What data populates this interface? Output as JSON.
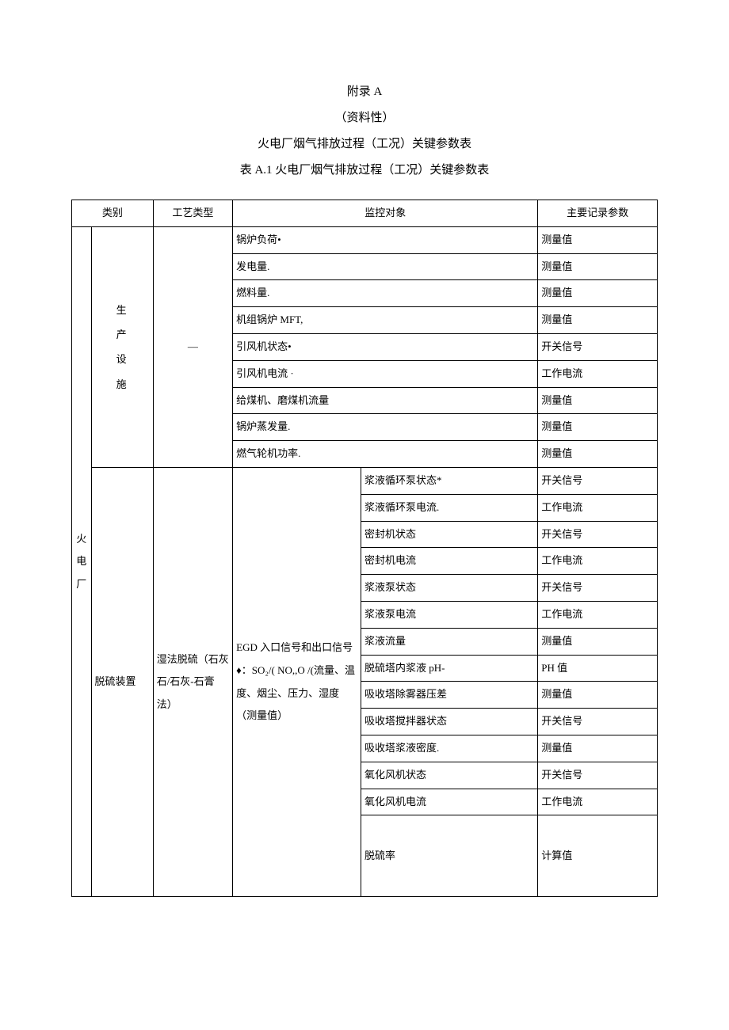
{
  "header": {
    "appendix": "附录 A",
    "nature": "（资料性）",
    "title": "火电厂烟气排放过程（工况）关键参数表",
    "table_caption": "表 A.1 火电厂烟气排放过程（工况）关键参数表"
  },
  "columns": {
    "category": "类别",
    "process_type": "工艺类型",
    "monitor_object": "监控对象",
    "main_params": "主要记录参数"
  },
  "facility_root": "火\n电\n厂",
  "section1": {
    "category": "生\n产\n设\n施",
    "process": "—",
    "rows": [
      {
        "obj": "锅炉负荷•",
        "param": "测量值"
      },
      {
        "obj": "发电量.",
        "param": "测量值"
      },
      {
        "obj": "燃料量.",
        "param": "测量值"
      },
      {
        "obj": "机组锅炉 MFT,",
        "param": "测量值"
      },
      {
        "obj": "引风机状态•",
        "param": "开关信号"
      },
      {
        "obj": "引风机电流 ·",
        "param": "工作电流"
      },
      {
        "obj": "给煤机、磨煤机流量",
        "param": "测量值"
      },
      {
        "obj": "锅炉蒸发量.",
        "param": "测量值"
      },
      {
        "obj": "燃气轮机功率.",
        "param": "测量值"
      }
    ]
  },
  "section2": {
    "category": "脱硫装置",
    "process": "湿法脱硫（石灰石/石灰-石膏法）",
    "obj_merged": "EGD 入口信号和出口信号♦：SO₂/( NO,,O /(流量、温度、烟尘、压力、湿度（测量值）",
    "rows": [
      {
        "obj2": "浆液循环泵状态*",
        "param": "开关信号"
      },
      {
        "obj2": "浆液循环泵电流.",
        "param": "工作电流"
      },
      {
        "obj2": "密封机状态",
        "param": "开关信号"
      },
      {
        "obj2": "密封机电流",
        "param": "工作电流"
      },
      {
        "obj2": "浆液泵状态",
        "param": "开关信号"
      },
      {
        "obj2": "浆液泵电流",
        "param": "工作电流"
      },
      {
        "obj2": "浆液流量",
        "param": "测量值"
      },
      {
        "obj2": "脱硫塔内浆液 pH-",
        "param": "PH 值"
      },
      {
        "obj2": "吸收塔除雾器压差",
        "param": "测量值"
      },
      {
        "obj2": "吸收塔搅拌器状态",
        "param": "开关信号"
      },
      {
        "obj2": "吸收塔浆液密度.",
        "param": "测量值"
      },
      {
        "obj2": "氧化风机状态",
        "param": "开关信号"
      },
      {
        "obj2": "氧化风机电流",
        "param": "工作电流"
      },
      {
        "obj2": "脱硫率",
        "param": "计算值",
        "tall": true
      }
    ]
  }
}
